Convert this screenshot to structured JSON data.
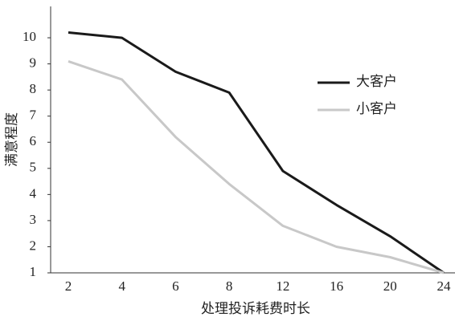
{
  "chart_data": {
    "type": "line",
    "y_label": "满意程度",
    "x_label": "处理投诉耗费时长",
    "categories": [
      "2",
      "4",
      "6",
      "8",
      "12",
      "16",
      "20",
      "24"
    ],
    "series": [
      {
        "name": "大客户",
        "color": "#1a1a1a",
        "values": [
          10.2,
          10.0,
          8.7,
          7.9,
          4.9,
          3.6,
          2.4,
          1.0
        ]
      },
      {
        "name": "小客户",
        "color": "#c8c8c8",
        "values": [
          9.1,
          8.4,
          6.2,
          4.4,
          2.8,
          2.0,
          1.6,
          1.0
        ]
      }
    ],
    "ylim": [
      1,
      11.2
    ],
    "yticks": [
      1,
      2,
      3,
      4,
      5,
      6,
      7,
      8,
      9,
      10
    ],
    "grid": false,
    "legend": "right"
  }
}
